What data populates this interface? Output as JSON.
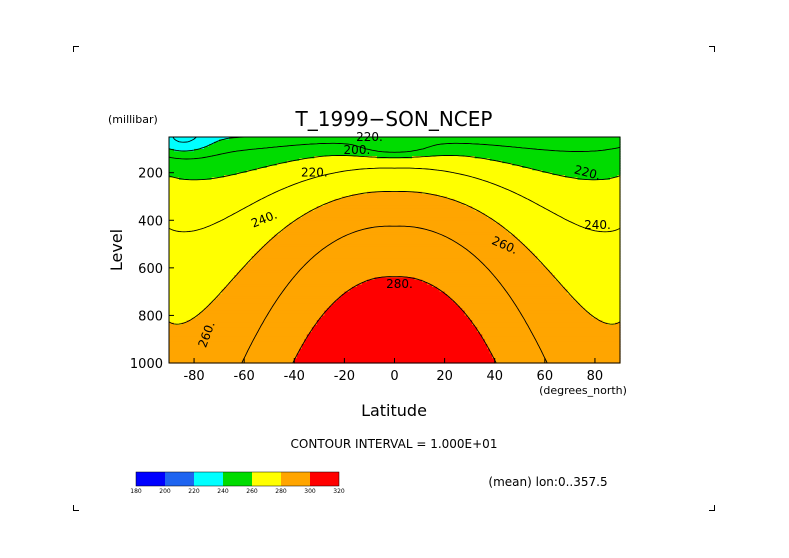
{
  "chart_data": {
    "type": "heatmap",
    "title": "T_1999−SON_NCEP",
    "xlabel": "Latitude",
    "ylabel": "Level",
    "x_unit": "(degrees_north)",
    "y_unit": "(millibar)",
    "xlim": [
      -90,
      90
    ],
    "ylim": [
      1000,
      50
    ],
    "x_ticks": [
      "-80",
      "-60",
      "-40",
      "-20",
      "0",
      "20",
      "40",
      "60",
      "80"
    ],
    "y_ticks": [
      "200",
      "400",
      "600",
      "800",
      "1000"
    ],
    "contour_interval_text": "CONTOUR INTERVAL = 1.000E+01",
    "footnote": "(mean) lon:0..357.5",
    "contour_labels": [
      "220.",
      "200.",
      "220.",
      "220.",
      "240.",
      "240.",
      "260.",
      "280.",
      "260."
    ],
    "colorbar": {
      "levels": [
        "180",
        "200",
        "220",
        "240",
        "260",
        "280",
        "300",
        "320"
      ],
      "colors": [
        "#0000ff",
        "#1e64f0",
        "#00ffff",
        "#00dc00",
        "#ffff00",
        "#ffa500",
        "#ff0000"
      ]
    }
  }
}
